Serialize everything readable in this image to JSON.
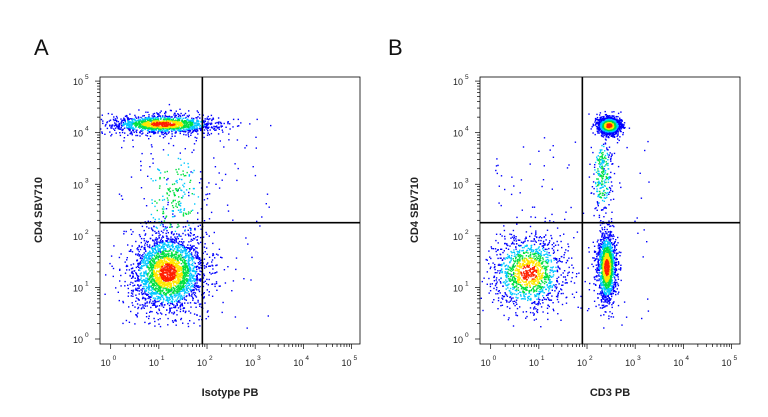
{
  "chart_data": [
    {
      "type": "scatter",
      "panel_label": "A",
      "xlabel": "Isotype PB",
      "ylabel": "CD4 SBV710",
      "xscale": "log",
      "yscale": "log",
      "xlim": [
        0.6,
        150000
      ],
      "ylim": [
        0.8,
        120000
      ],
      "x_ticks": [
        1,
        10,
        100,
        1000,
        10000,
        100000
      ],
      "y_ticks": [
        1,
        10,
        100,
        1000,
        10000,
        100000
      ],
      "tick_base": "10",
      "tick_exponents": [
        "0",
        "1",
        "2",
        "3",
        "4",
        "5"
      ],
      "gate": {
        "x": 80,
        "y": 180
      },
      "colors": [
        "#0000ff",
        "#00c8ff",
        "#00e040",
        "#ffe600",
        "#ff2000"
      ],
      "populations": [
        {
          "x_center": 12,
          "y_center": 15000,
          "x_spread_log": 0.55,
          "y_spread_log": 0.09,
          "weight": 0.34
        },
        {
          "x_center": 15,
          "y_center": 20,
          "x_spread_log": 0.38,
          "y_spread_log": 0.38,
          "weight": 0.6
        },
        {
          "x_center": 20,
          "y_center": 600,
          "x_spread_log": 0.35,
          "y_spread_log": 0.55,
          "weight": 0.06
        }
      ]
    },
    {
      "type": "scatter",
      "panel_label": "B",
      "xlabel": "CD3 PB",
      "ylabel": "CD4 SBV710",
      "xscale": "log",
      "yscale": "log",
      "xlim": [
        0.6,
        150000
      ],
      "ylim": [
        0.8,
        120000
      ],
      "x_ticks": [
        1,
        10,
        100,
        1000,
        10000,
        100000
      ],
      "y_ticks": [
        1,
        10,
        100,
        1000,
        10000,
        100000
      ],
      "tick_base": "10",
      "tick_exponents": [
        "0",
        "1",
        "2",
        "3",
        "4",
        "5"
      ],
      "gate": {
        "x": 80,
        "y": 180
      },
      "colors": [
        "#0000ff",
        "#00c8ff",
        "#00e040",
        "#ffe600",
        "#ff2000"
      ],
      "populations": [
        {
          "x_center": 280,
          "y_center": 14000,
          "x_spread_log": 0.12,
          "y_spread_log": 0.08,
          "weight": 0.32
        },
        {
          "x_center": 250,
          "y_center": 25,
          "x_spread_log": 0.1,
          "y_spread_log": 0.35,
          "weight": 0.32
        },
        {
          "x_center": 6,
          "y_center": 20,
          "x_spread_log": 0.38,
          "y_spread_log": 0.35,
          "weight": 0.3
        },
        {
          "x_center": 200,
          "y_center": 1500,
          "x_spread_log": 0.1,
          "y_spread_log": 0.4,
          "weight": 0.06
        }
      ]
    }
  ]
}
